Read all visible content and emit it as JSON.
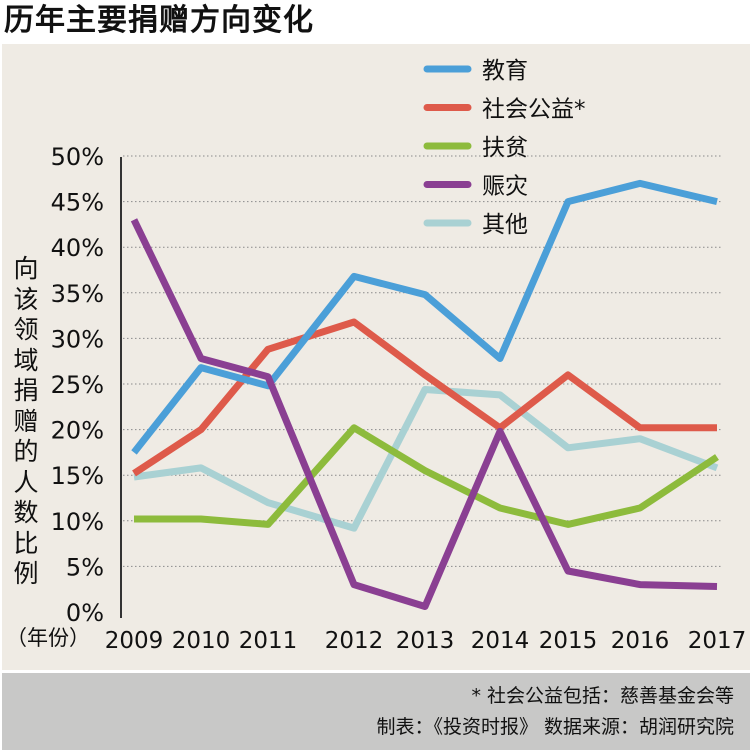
{
  "title": "历年主要捐赠方向变化",
  "ylabel_text": "向该领域捐赠的人数比例",
  "footnote": "* 社会公益包括：慈善基金会等",
  "credits": "制表：《投资时报》 数据来源：胡润研究院",
  "chart_data": {
    "type": "line",
    "title": "历年主要捐赠方向变化",
    "xlabel": "（年份）",
    "ylabel": "向该领域捐赠的人数比例",
    "x": [
      "2009",
      "2010",
      "2011",
      "2012",
      "2013",
      "2014",
      "2015",
      "2016",
      "2017"
    ],
    "yticks": [
      "0%",
      "5%",
      "10%",
      "15%",
      "20%",
      "25%",
      "30%",
      "35%",
      "40%",
      "45%",
      "50%"
    ],
    "ylim": [
      0,
      50
    ],
    "grid": true,
    "legend_position": "top-right",
    "series": [
      {
        "name": "教育",
        "color": "#4b9fd8",
        "values": [
          17.5,
          26.8,
          24.8,
          36.8,
          34.8,
          27.8,
          45,
          47,
          45
        ]
      },
      {
        "name": "社会公益*",
        "color": "#de5a4a",
        "values": [
          15.2,
          20,
          28.8,
          31.8,
          26,
          20.2,
          26,
          20.2,
          20.2
        ]
      },
      {
        "name": "扶贫",
        "color": "#8dbb3c",
        "values": [
          10.2,
          10.2,
          9.6,
          20.2,
          15.5,
          11.4,
          9.6,
          11.4,
          17
        ]
      },
      {
        "name": "赈灾",
        "color": "#8a3f92",
        "values": [
          43,
          27.8,
          25.8,
          3,
          0.6,
          19.8,
          4.5,
          3,
          2.8
        ]
      },
      {
        "name": "其他",
        "color": "#a9d1d3",
        "values": [
          14.8,
          15.8,
          12,
          9.2,
          24.4,
          23.8,
          18,
          19,
          15.8
        ]
      }
    ]
  }
}
